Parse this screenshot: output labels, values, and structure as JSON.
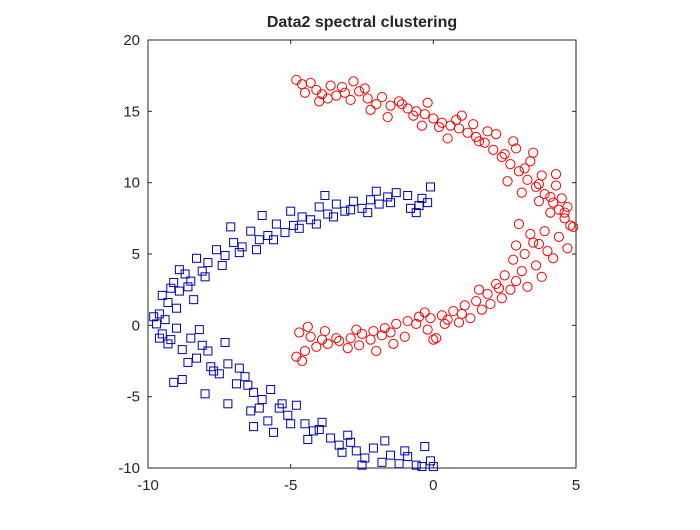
{
  "chart_data": {
    "type": "scatter",
    "title": "Data2 spectral clustering",
    "xlabel": "",
    "ylabel": "",
    "xlim": [
      -10,
      5
    ],
    "ylim": [
      -10,
      20
    ],
    "xticks": [
      -10,
      -5,
      0,
      5
    ],
    "yticks": [
      -10,
      -5,
      0,
      5,
      10,
      15,
      20
    ],
    "grid": false,
    "legend": "none",
    "series": [
      {
        "marker": "circle",
        "color": "#ff0000",
        "points": [
          [
            -4.8,
            17.2
          ],
          [
            -4.6,
            16.9
          ],
          [
            -4.3,
            17.0
          ],
          [
            -4.1,
            16.5
          ],
          [
            -3.9,
            16.2
          ],
          [
            -3.6,
            16.8
          ],
          [
            -3.4,
            16.1
          ],
          [
            -3.1,
            16.3
          ],
          [
            -2.9,
            15.8
          ],
          [
            -2.6,
            16.4
          ],
          [
            -2.3,
            15.9
          ],
          [
            -2.0,
            15.5
          ],
          [
            -1.8,
            16.0
          ],
          [
            -1.5,
            15.4
          ],
          [
            -1.2,
            15.7
          ],
          [
            -0.9,
            15.2
          ],
          [
            -0.6,
            15.0
          ],
          [
            -0.3,
            14.8
          ],
          [
            0.0,
            14.5
          ],
          [
            0.3,
            14.2
          ],
          [
            0.6,
            14.0
          ],
          [
            0.9,
            13.8
          ],
          [
            1.2,
            13.5
          ],
          [
            1.5,
            13.2
          ],
          [
            1.8,
            12.8
          ],
          [
            2.1,
            12.3
          ],
          [
            2.4,
            11.8
          ],
          [
            2.7,
            11.3
          ],
          [
            3.0,
            10.8
          ],
          [
            3.3,
            10.2
          ],
          [
            3.6,
            9.7
          ],
          [
            3.9,
            9.2
          ],
          [
            4.2,
            8.6
          ],
          [
            4.4,
            8.1
          ],
          [
            4.6,
            7.5
          ],
          [
            4.8,
            7.0
          ],
          [
            -3.2,
            16.7
          ],
          [
            -2.8,
            17.1
          ],
          [
            -1.6,
            14.6
          ],
          [
            -0.2,
            15.6
          ],
          [
            0.5,
            13.1
          ],
          [
            1.4,
            14.1
          ],
          [
            2.2,
            13.4
          ],
          [
            2.9,
            12.4
          ],
          [
            3.4,
            11.5
          ],
          [
            3.8,
            10.5
          ],
          [
            4.3,
            9.8
          ],
          [
            4.5,
            8.9
          ],
          [
            2.6,
            10.1
          ],
          [
            3.1,
            9.3
          ],
          [
            3.7,
            8.7
          ],
          [
            4.1,
            7.9
          ],
          [
            3.9,
            6.6
          ],
          [
            4.4,
            6.2
          ],
          [
            3.5,
            5.8
          ],
          [
            4.0,
            5.2
          ],
          [
            3.2,
            5.0
          ],
          [
            3.6,
            4.2
          ],
          [
            2.8,
            4.6
          ],
          [
            3.1,
            3.8
          ],
          [
            2.5,
            3.5
          ],
          [
            2.2,
            2.9
          ],
          [
            2.7,
            2.5
          ],
          [
            1.9,
            2.2
          ],
          [
            1.5,
            1.7
          ],
          [
            1.1,
            1.4
          ],
          [
            0.7,
            1.0
          ],
          [
            0.3,
            0.7
          ],
          [
            -0.1,
            0.5
          ],
          [
            -0.5,
            0.6
          ],
          [
            -0.9,
            0.3
          ],
          [
            -1.3,
            0.1
          ],
          [
            -1.7,
            -0.2
          ],
          [
            -2.1,
            -0.4
          ],
          [
            -2.5,
            -0.6
          ],
          [
            -2.9,
            -0.9
          ],
          [
            -3.3,
            -1.1
          ],
          [
            -3.7,
            -1.3
          ],
          [
            -4.1,
            -1.5
          ],
          [
            -4.5,
            -1.8
          ],
          [
            -4.8,
            -2.2
          ],
          [
            -4.7,
            -0.5
          ],
          [
            -4.3,
            -0.8
          ],
          [
            -3.8,
            -0.4
          ],
          [
            -3.4,
            -0.9
          ],
          [
            -3.0,
            -1.6
          ],
          [
            -2.6,
            -1.4
          ],
          [
            -2.2,
            -1.0
          ],
          [
            -1.8,
            -0.7
          ],
          [
            -1.4,
            -1.3
          ],
          [
            -1.0,
            -0.8
          ],
          [
            -0.6,
            0.1
          ],
          [
            -0.2,
            -0.3
          ],
          [
            0.1,
            -0.9
          ],
          [
            0.5,
            0.4
          ],
          [
            0.9,
            0.2
          ],
          [
            1.3,
            0.5
          ],
          [
            1.7,
            1.1
          ],
          [
            2.0,
            1.5
          ],
          [
            2.4,
            1.9
          ],
          [
            2.9,
            3.1
          ],
          [
            3.3,
            2.7
          ],
          [
            3.8,
            3.4
          ],
          [
            4.2,
            4.7
          ],
          [
            4.7,
            5.4
          ],
          [
            4.9,
            6.9
          ],
          [
            4.6,
            7.9
          ],
          [
            4.3,
            10.6
          ],
          [
            3.5,
            12.1
          ],
          [
            2.8,
            12.9
          ],
          [
            1.9,
            13.6
          ],
          [
            0.8,
            14.4
          ],
          [
            -0.4,
            14.0
          ],
          [
            -1.1,
            15.5
          ],
          [
            -2.4,
            16.6
          ],
          [
            -3.7,
            15.9
          ],
          [
            -4.5,
            16.3
          ],
          [
            -4.0,
            15.7
          ],
          [
            -2.2,
            15.1
          ],
          [
            -0.7,
            14.7
          ],
          [
            0.2,
            13.9
          ],
          [
            1.0,
            14.7
          ],
          [
            1.6,
            12.9
          ],
          [
            2.5,
            12.0
          ],
          [
            3.2,
            11.0
          ],
          [
            3.7,
            9.9
          ],
          [
            4.1,
            9.0
          ],
          [
            4.7,
            8.3
          ],
          [
            3.0,
            7.1
          ],
          [
            3.4,
            6.4
          ],
          [
            2.9,
            5.6
          ],
          [
            3.7,
            5.7
          ],
          [
            2.3,
            2.6
          ],
          [
            1.6,
            2.5
          ],
          [
            1.0,
            0.8
          ],
          [
            0.4,
            0.1
          ],
          [
            -0.3,
            0.9
          ],
          [
            -1.5,
            -0.5
          ],
          [
            -2.7,
            -0.3
          ],
          [
            -3.9,
            -1.0
          ],
          [
            -4.6,
            -2.5
          ],
          [
            -4.4,
            -0.1
          ],
          [
            -2.0,
            -1.8
          ],
          [
            0.0,
            -1.0
          ]
        ]
      },
      {
        "marker": "square",
        "color": "#0000b4",
        "points": [
          [
            -0.1,
            9.7
          ],
          [
            -0.2,
            8.6
          ],
          [
            -0.5,
            8.4
          ],
          [
            -0.9,
            9.1
          ],
          [
            -1.3,
            9.3
          ],
          [
            -1.6,
            9.0
          ],
          [
            -1.9,
            8.5
          ],
          [
            -2.2,
            8.8
          ],
          [
            -2.5,
            8.2
          ],
          [
            -2.8,
            8.7
          ],
          [
            -3.1,
            8.0
          ],
          [
            -3.4,
            8.5
          ],
          [
            -3.7,
            7.8
          ],
          [
            -4.0,
            8.3
          ],
          [
            -4.3,
            7.4
          ],
          [
            -4.6,
            7.6
          ],
          [
            -4.9,
            7.0
          ],
          [
            -5.2,
            6.5
          ],
          [
            -5.5,
            7.1
          ],
          [
            -5.8,
            6.3
          ],
          [
            -6.1,
            6.0
          ],
          [
            -6.4,
            6.6
          ],
          [
            -6.7,
            5.5
          ],
          [
            -7.0,
            5.8
          ],
          [
            -7.3,
            4.9
          ],
          [
            -7.6,
            5.3
          ],
          [
            -7.9,
            4.4
          ],
          [
            -8.1,
            3.8
          ],
          [
            -8.3,
            4.7
          ],
          [
            -8.5,
            3.1
          ],
          [
            -8.7,
            3.6
          ],
          [
            -8.9,
            2.4
          ],
          [
            -9.1,
            3.0
          ],
          [
            -9.3,
            1.6
          ],
          [
            -9.5,
            2.1
          ],
          [
            -9.6,
            0.8
          ],
          [
            -9.7,
            0.1
          ],
          [
            -9.5,
            -0.6
          ],
          [
            -9.3,
            -1.3
          ],
          [
            -9.0,
            -0.2
          ],
          [
            -8.8,
            -1.7
          ],
          [
            -8.5,
            -0.9
          ],
          [
            -8.3,
            -2.3
          ],
          [
            -8.1,
            -1.4
          ],
          [
            -7.8,
            -2.9
          ],
          [
            -7.5,
            -3.4
          ],
          [
            -7.2,
            -2.7
          ],
          [
            -6.9,
            -4.1
          ],
          [
            -6.6,
            -3.6
          ],
          [
            -6.3,
            -4.7
          ],
          [
            -6.0,
            -5.2
          ],
          [
            -5.7,
            -4.5
          ],
          [
            -5.4,
            -5.8
          ],
          [
            -5.1,
            -6.3
          ],
          [
            -4.8,
            -5.6
          ],
          [
            -4.5,
            -6.9
          ],
          [
            -4.2,
            -7.4
          ],
          [
            -3.9,
            -6.8
          ],
          [
            -3.6,
            -7.9
          ],
          [
            -3.3,
            -8.4
          ],
          [
            -3.0,
            -7.7
          ],
          [
            -2.7,
            -8.8
          ],
          [
            -2.4,
            -9.3
          ],
          [
            -2.1,
            -8.6
          ],
          [
            -1.8,
            -9.6
          ],
          [
            -1.5,
            -9.1
          ],
          [
            -1.2,
            -9.7
          ],
          [
            -0.9,
            -9.2
          ],
          [
            -0.6,
            -9.8
          ],
          [
            -0.3,
            -8.5
          ],
          [
            -0.1,
            -9.5
          ],
          [
            0.0,
            -9.9
          ],
          [
            -1.7,
            -8.1
          ],
          [
            -2.9,
            -8.2
          ],
          [
            -4.0,
            -7.3
          ],
          [
            -5.3,
            -5.5
          ],
          [
            -6.5,
            -4.2
          ],
          [
            -7.7,
            -3.2
          ],
          [
            -8.6,
            -2.6
          ],
          [
            -9.2,
            -1.0
          ],
          [
            -9.4,
            0.4
          ],
          [
            -9.0,
            1.2
          ],
          [
            -8.6,
            2.7
          ],
          [
            -8.0,
            3.4
          ],
          [
            -7.4,
            4.2
          ],
          [
            -6.8,
            5.1
          ],
          [
            -6.2,
            5.3
          ],
          [
            -5.6,
            6.0
          ],
          [
            -4.7,
            6.8
          ],
          [
            -4.1,
            7.1
          ],
          [
            -3.5,
            7.6
          ],
          [
            -2.9,
            8.1
          ],
          [
            -2.3,
            7.9
          ],
          [
            -1.5,
            8.6
          ],
          [
            -0.8,
            8.2
          ],
          [
            -0.4,
            8.9
          ],
          [
            -7.1,
            6.9
          ],
          [
            -6.0,
            7.7
          ],
          [
            -5.0,
            8.0
          ],
          [
            -3.8,
            9.1
          ],
          [
            -2.0,
            9.4
          ],
          [
            -0.6,
            7.9
          ],
          [
            -9.8,
            0.6
          ],
          [
            -9.6,
            -0.9
          ],
          [
            -9.2,
            2.6
          ],
          [
            -8.9,
            3.9
          ],
          [
            -8.4,
            1.8
          ],
          [
            -8.2,
            -0.3
          ],
          [
            -7.9,
            -1.8
          ],
          [
            -7.3,
            -1.2
          ],
          [
            -6.8,
            -3.0
          ],
          [
            -6.1,
            -5.8
          ],
          [
            -5.8,
            -6.7
          ],
          [
            -5.0,
            -6.9
          ],
          [
            -4.4,
            -8.0
          ],
          [
            -3.2,
            -8.9
          ],
          [
            -2.5,
            -9.8
          ],
          [
            -1.0,
            -8.8
          ],
          [
            -0.4,
            -9.9
          ],
          [
            -6.3,
            -7.1
          ],
          [
            -5.6,
            -7.5
          ],
          [
            -8.8,
            -3.8
          ],
          [
            -9.1,
            -4.0
          ],
          [
            -8.0,
            -4.8
          ],
          [
            -7.2,
            -5.5
          ],
          [
            -6.4,
            -6.0
          ]
        ]
      }
    ]
  }
}
